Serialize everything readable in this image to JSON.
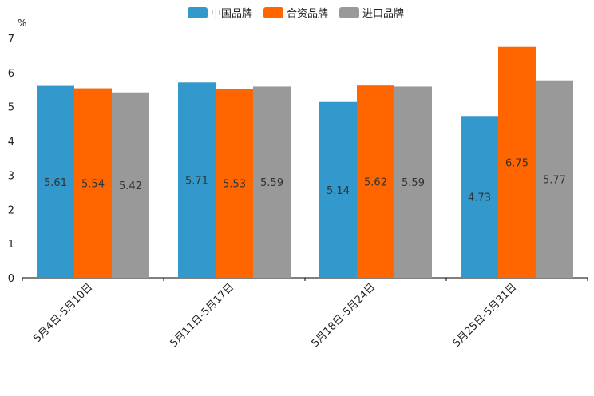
{
  "chart_data": {
    "type": "bar",
    "title": "",
    "xlabel": "",
    "ylabel": "%",
    "ylim": [
      0,
      7
    ],
    "yticks": [
      0,
      1,
      2,
      3,
      4,
      5,
      6,
      7
    ],
    "grid": false,
    "legend_position": "top-center",
    "categories": [
      "5月4日-5月10日",
      "5月11日-5月17日",
      "5月18日-5月24日",
      "5月25日-5月31日"
    ],
    "series": [
      {
        "name": "中国品牌",
        "color": "#3399cc",
        "values": [
          5.61,
          5.71,
          5.14,
          4.73
        ],
        "labels": [
          "5.61",
          "5.71",
          "5.14",
          "4.73"
        ]
      },
      {
        "name": "合资品牌",
        "color": "#ff6600",
        "values": [
          5.54,
          5.53,
          5.62,
          6.75
        ],
        "labels": [
          "5.54",
          "5.53",
          "5.62",
          "6.75"
        ]
      },
      {
        "name": "进口品牌",
        "color": "#999999",
        "values": [
          5.42,
          5.59,
          5.59,
          5.77
        ],
        "labels": [
          "5.42",
          "5.59",
          "5.59",
          "5.77"
        ]
      }
    ]
  }
}
